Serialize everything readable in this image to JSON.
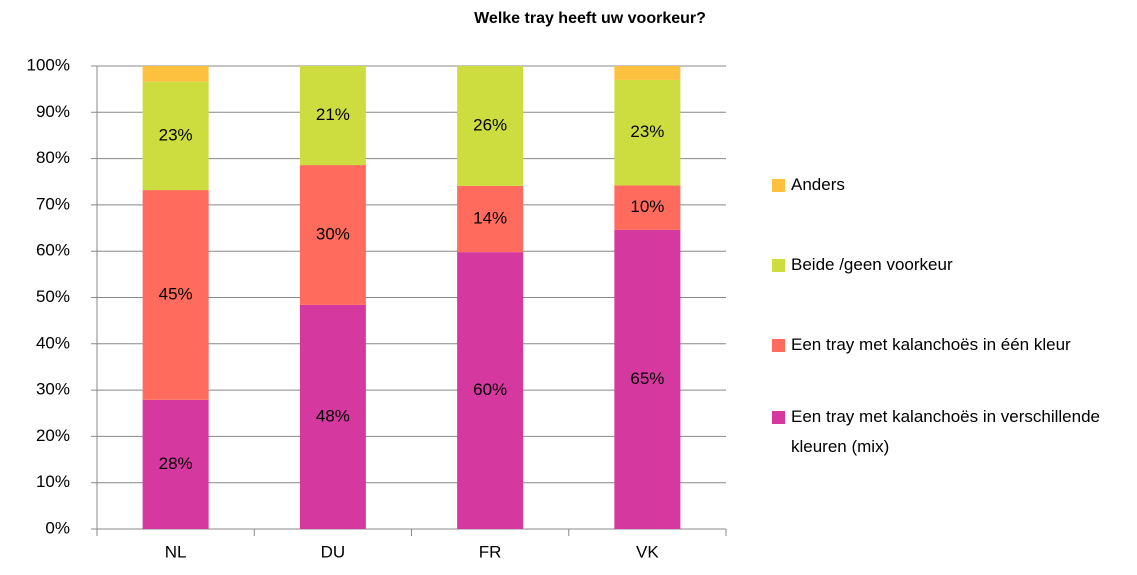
{
  "chart_data": {
    "type": "stacked_bar",
    "title": "Welke tray heeft uw voorkeur?",
    "categories": [
      "NL",
      "DU",
      "FR",
      "VK"
    ],
    "series": [
      {
        "name": "Een tray met kalanchoës in verschillende kleuren (mix)",
        "color": "#d5389e",
        "values": [
          27.9,
          48.4,
          59.8,
          64.6
        ],
        "value_labels": [
          "28%",
          "48%",
          "60%",
          "65%"
        ]
      },
      {
        "name": "Een tray met kalanchoës in één kleur",
        "color": "#ff6b5c",
        "values": [
          45.3,
          30.2,
          14.3,
          9.6
        ],
        "value_labels": [
          "45%",
          "30%",
          "14%",
          "10%"
        ]
      },
      {
        "name": "Beide /geen voorkeur",
        "color": "#cddd40",
        "values": [
          23.4,
          21.4,
          25.9,
          22.8
        ],
        "value_labels": [
          "23%",
          "21%",
          "26%",
          "23%"
        ]
      },
      {
        "name": "Anders",
        "color": "#fdc03f",
        "values": [
          3.4,
          0,
          0,
          3.0
        ]
      }
    ],
    "ylim": [
      0,
      100
    ],
    "yticks": [
      {
        "value": 0,
        "label": "0%"
      },
      {
        "value": 10,
        "label": "10%"
      },
      {
        "value": 20,
        "label": "20%"
      },
      {
        "value": 30,
        "label": "30%"
      },
      {
        "value": 40,
        "label": "40%"
      },
      {
        "value": 50,
        "label": "50%"
      },
      {
        "value": 60,
        "label": "60%"
      },
      {
        "value": 70,
        "label": "70%"
      },
      {
        "value": 80,
        "label": "80%"
      },
      {
        "value": 90,
        "label": "90%"
      },
      {
        "value": 100,
        "label": "100%"
      }
    ],
    "grid": true,
    "legend": "right"
  }
}
